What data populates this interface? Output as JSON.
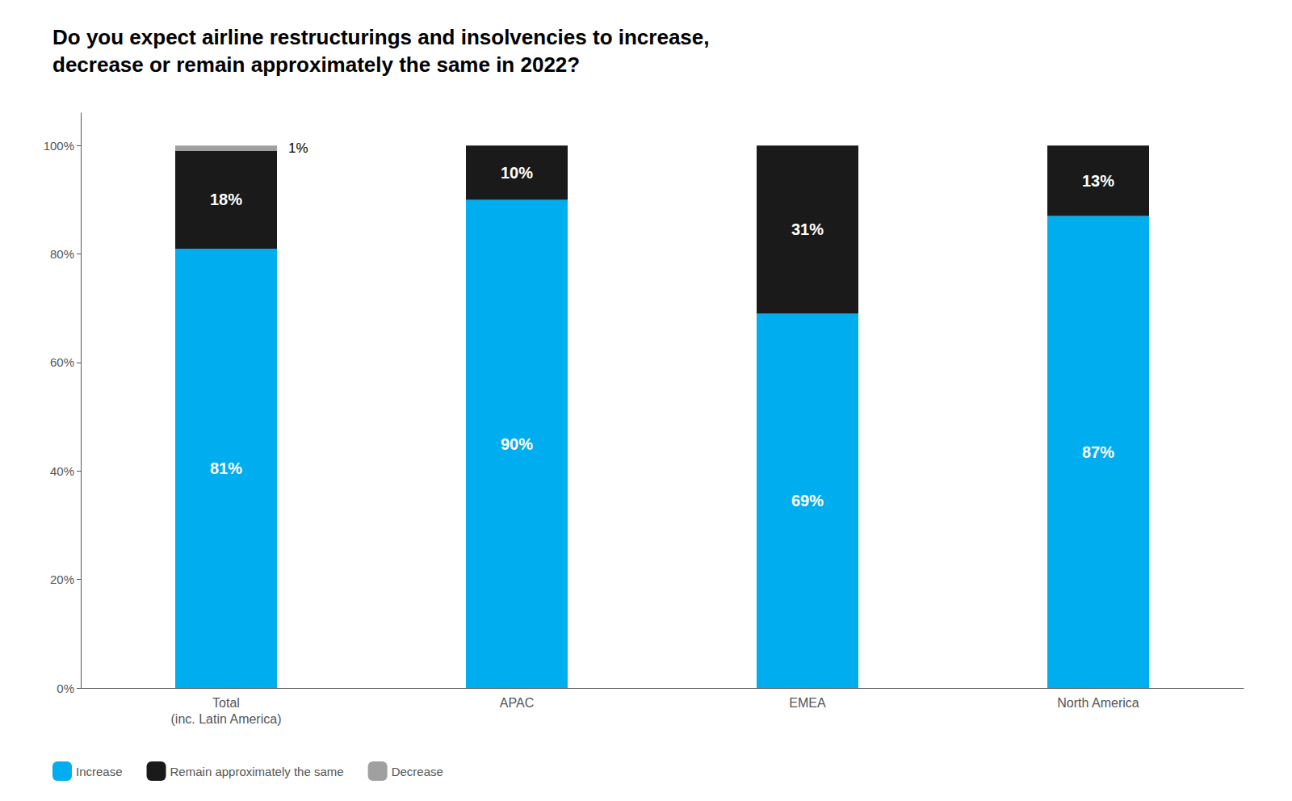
{
  "chart_data": {
    "type": "bar",
    "title": "Do you expect airline restructurings and insolvencies to increase,\ndecrease or remain approximately the same in 2022?",
    "categories": [
      "Total\n(inc. Latin America)",
      "APAC",
      "EMEA",
      "North America"
    ],
    "series": [
      {
        "name": "Increase",
        "color": "#00AEEF",
        "values": [
          81,
          90,
          69,
          87
        ],
        "value_labels": [
          "81%",
          "90%",
          "69%",
          "87%"
        ]
      },
      {
        "name": "Remain approximately the same",
        "color": "#1A1A1A",
        "values": [
          18,
          10,
          31,
          13
        ],
        "value_labels": [
          "18%",
          "10%",
          "31%",
          "13%"
        ]
      },
      {
        "name": "Decrease",
        "color": "#A0A0A0",
        "values": [
          1,
          0,
          0,
          0
        ],
        "value_labels": [
          "1%",
          null,
          null,
          null
        ]
      }
    ],
    "stacked": true,
    "data_labels": true,
    "ylim": [
      0,
      106
    ],
    "yticks": [
      {
        "value": 0,
        "label": "0%"
      },
      {
        "value": 20,
        "label": "20%"
      },
      {
        "value": 40,
        "label": "40%"
      },
      {
        "value": 60,
        "label": "60%"
      },
      {
        "value": 80,
        "label": "80%"
      },
      {
        "value": 100,
        "label": "100%"
      }
    ],
    "grid": false,
    "legend": "lower left"
  }
}
